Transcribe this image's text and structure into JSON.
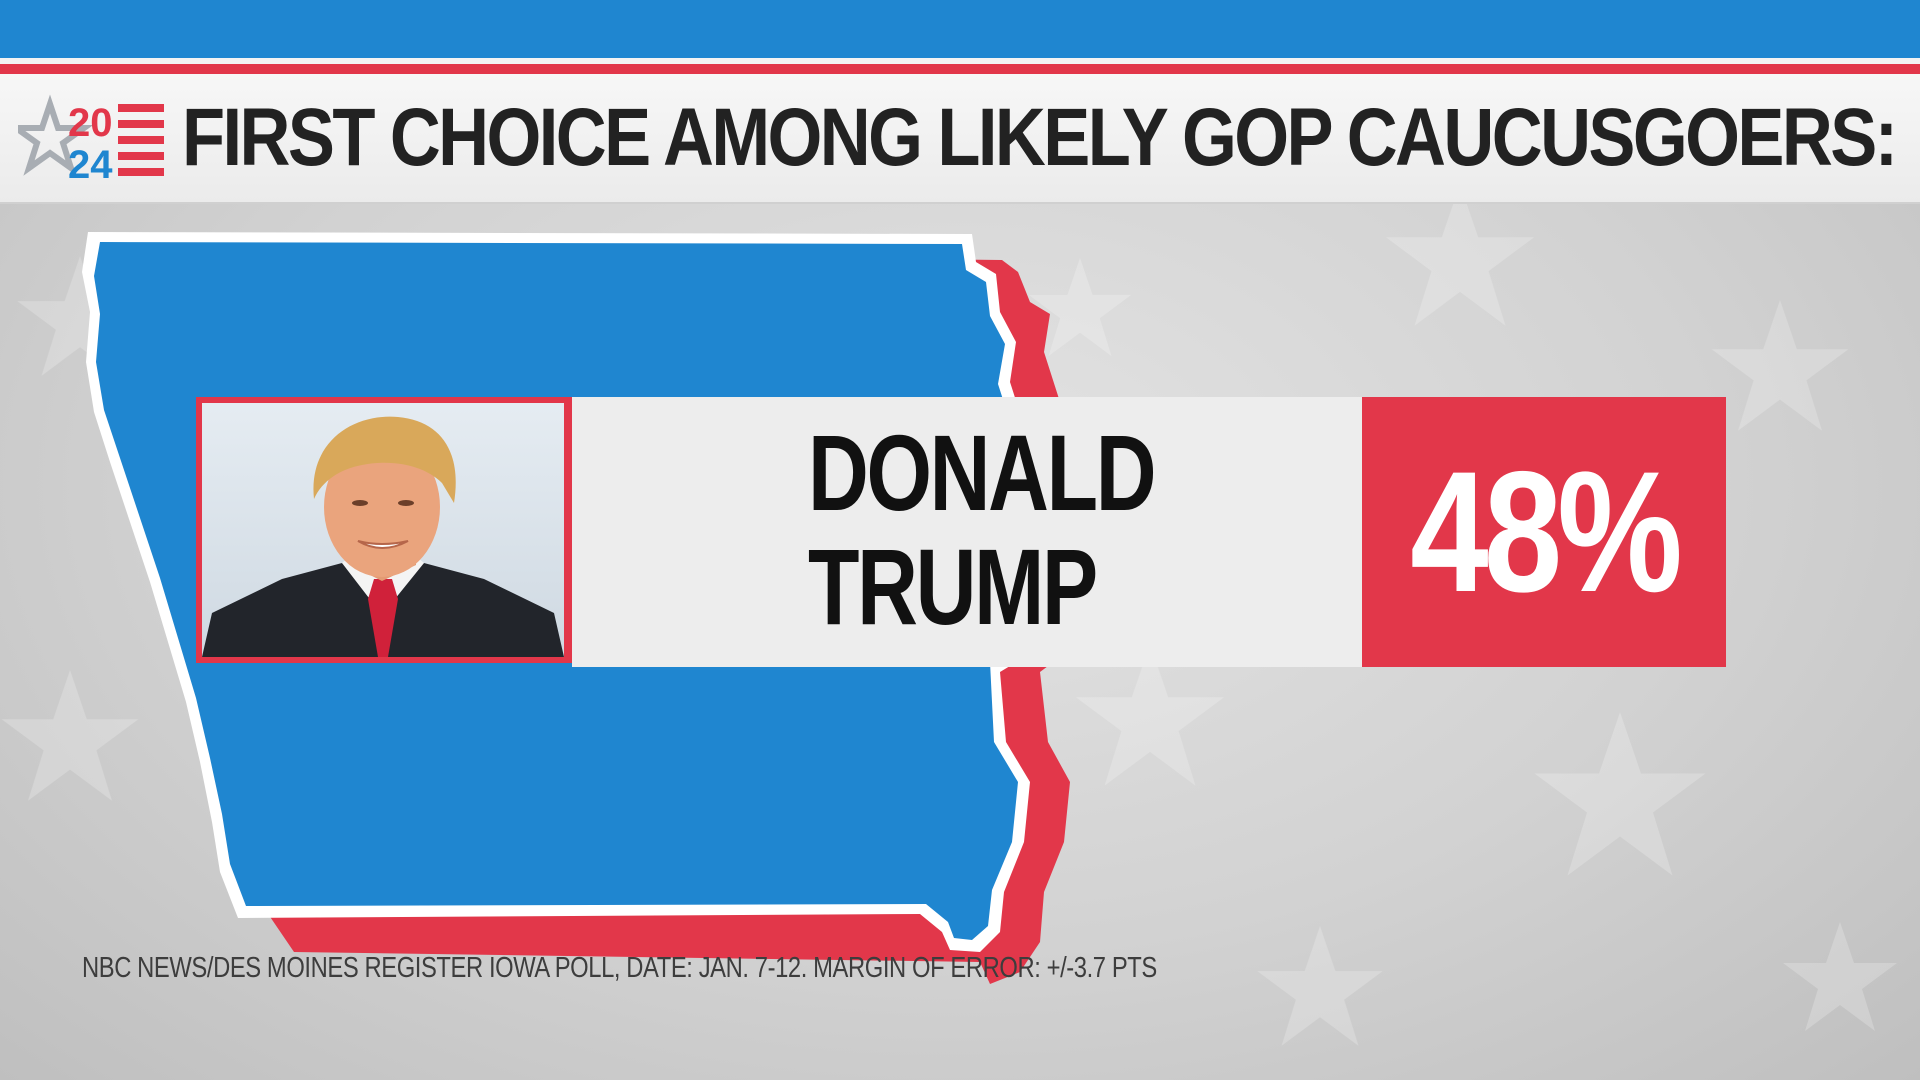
{
  "header": {
    "logo": {
      "year_top": "20",
      "year_bottom": "24",
      "icon": "star-flag-icon"
    },
    "title": "FIRST CHOICE AMONG LIKELY GOP CAUCUSGOERS:"
  },
  "result": {
    "candidate_first": "DONALD",
    "candidate_last": "TRUMP",
    "percent": "48%",
    "photo_icon": "candidate-portrait"
  },
  "footer": {
    "source": "NBC NEWS/DES MOINES REGISTER IOWA POLL, DATE: JAN. 7-12. MARGIN OF ERROR: +/-3.7 PTS"
  },
  "colors": {
    "blue": "#1f86d0",
    "red": "#e2374a",
    "panel": "#ededed",
    "text_dark": "#222222"
  }
}
